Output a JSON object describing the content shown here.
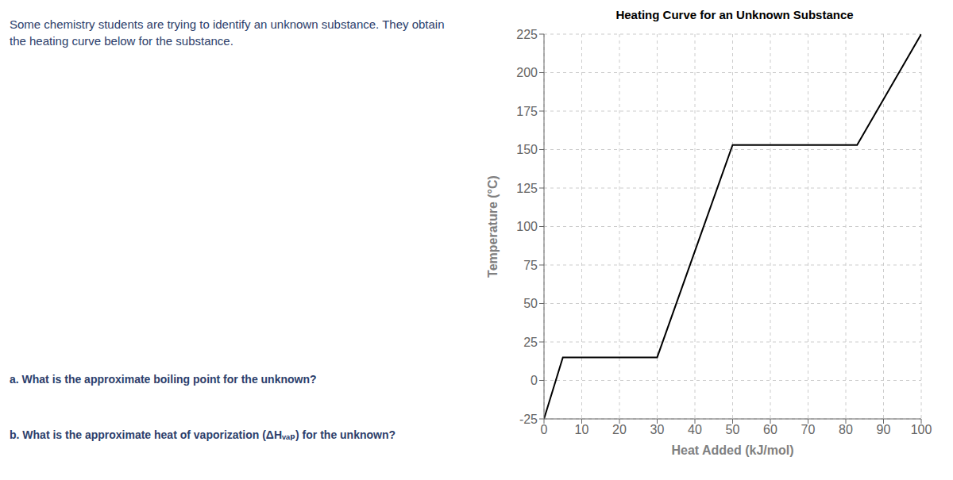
{
  "chart_data": {
    "type": "line",
    "title": "Heating Curve for an Unknown Substance",
    "xlabel": "Heat Added (kJ/mol)",
    "ylabel": "Temperature (°C)",
    "annotations": [
      "Some chemistry students are trying to identify an unknown substance. They obtain the heating curve below for the substance.",
      "a. What is the approximate boiling point for the unknown?",
      "b. What is the approximate heat of vaporization (ΔHᵥₐₚ) for the unknown?"
    ],
    "x": [
      0,
      5,
      10,
      30,
      50,
      83,
      100
    ],
    "values": [
      -25,
      15,
      15,
      15,
      153,
      153,
      225
    ],
    "color": "#000000",
    "xlim": [
      0,
      100
    ],
    "ylim": [
      -25,
      225
    ],
    "xticks": [
      0,
      10,
      20,
      30,
      40,
      50,
      60,
      70,
      80,
      90,
      100
    ],
    "yticks": [
      -25,
      0,
      25,
      50,
      75,
      100,
      125,
      150,
      175,
      200,
      225
    ],
    "grid": true
  }
}
